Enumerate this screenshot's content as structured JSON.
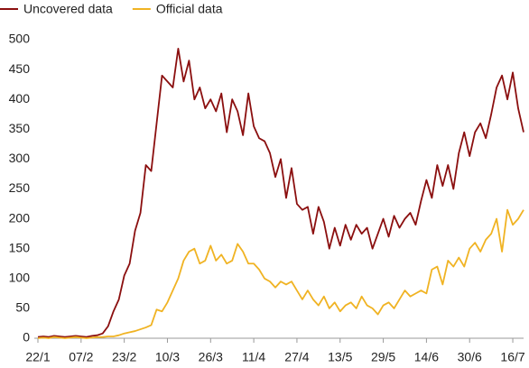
{
  "chart_data": {
    "type": "line",
    "categories": [
      "22/1",
      null,
      null,
      null,
      null,
      null,
      null,
      null,
      "07/2",
      null,
      null,
      null,
      null,
      null,
      null,
      null,
      "23/2",
      null,
      null,
      null,
      null,
      null,
      null,
      null,
      "10/3",
      null,
      null,
      null,
      null,
      null,
      null,
      null,
      "26/3",
      null,
      null,
      null,
      null,
      null,
      null,
      null,
      "11/4",
      null,
      null,
      null,
      null,
      null,
      null,
      null,
      "27/4",
      null,
      null,
      null,
      null,
      null,
      null,
      null,
      "13/5",
      null,
      null,
      null,
      null,
      null,
      null,
      null,
      "29/5",
      null,
      null,
      null,
      null,
      null,
      null,
      null,
      "14/6",
      null,
      null,
      null,
      null,
      null,
      null,
      null,
      "30/6",
      null,
      null,
      null,
      null,
      null,
      null,
      null,
      "16/7",
      null,
      null
    ],
    "series": [
      {
        "name": "Uncovered data",
        "color": "#8b0f0f",
        "values": [
          2,
          3,
          2,
          4,
          3,
          2,
          3,
          4,
          3,
          2,
          4,
          5,
          8,
          20,
          45,
          65,
          105,
          125,
          180,
          210,
          290,
          280,
          360,
          440,
          430,
          420,
          485,
          430,
          465,
          400,
          420,
          385,
          400,
          380,
          410,
          345,
          400,
          380,
          340,
          410,
          355,
          335,
          330,
          310,
          270,
          300,
          235,
          285,
          225,
          215,
          220,
          175,
          220,
          195,
          150,
          185,
          155,
          190,
          165,
          190,
          175,
          185,
          150,
          175,
          200,
          170,
          205,
          185,
          200,
          210,
          190,
          230,
          265,
          235,
          290,
          255,
          290,
          250,
          310,
          345,
          305,
          345,
          360,
          335,
          375,
          420,
          440,
          400,
          445,
          385,
          345
        ]
      },
      {
        "name": "Official data",
        "color": "#f0b323",
        "values": [
          0,
          1,
          0,
          2,
          1,
          0,
          1,
          2,
          1,
          0,
          1,
          2,
          2,
          3,
          3,
          5,
          8,
          10,
          12,
          15,
          18,
          22,
          48,
          45,
          60,
          80,
          100,
          130,
          145,
          150,
          125,
          130,
          155,
          130,
          140,
          125,
          130,
          158,
          145,
          125,
          125,
          115,
          100,
          95,
          85,
          95,
          90,
          95,
          80,
          65,
          80,
          65,
          55,
          70,
          50,
          60,
          45,
          55,
          60,
          50,
          70,
          55,
          50,
          40,
          55,
          60,
          50,
          65,
          80,
          70,
          75,
          80,
          75,
          115,
          120,
          90,
          130,
          120,
          135,
          120,
          150,
          160,
          145,
          165,
          175,
          200,
          145,
          215,
          190,
          200,
          215
        ]
      }
    ],
    "ylim": [
      0,
      500
    ],
    "yticks": [
      0,
      50,
      100,
      150,
      200,
      250,
      300,
      350,
      400,
      450,
      500
    ],
    "grid": false
  }
}
